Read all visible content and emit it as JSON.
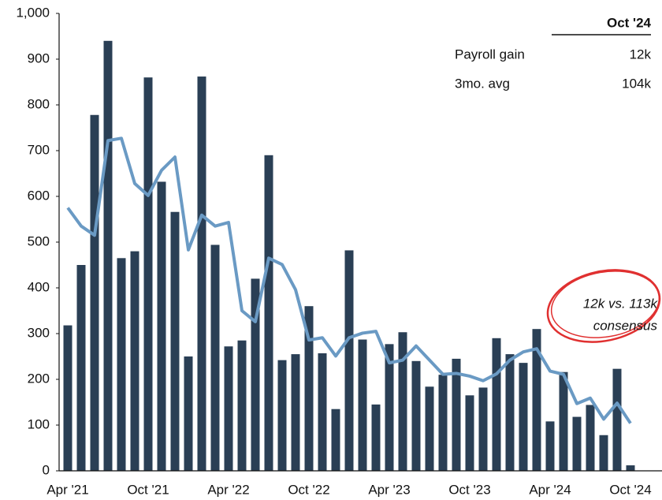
{
  "chart_data": {
    "type": "bar",
    "categories": [
      "Apr '21",
      null,
      null,
      null,
      null,
      null,
      "Oct '21",
      null,
      null,
      null,
      null,
      null,
      "Apr '22",
      null,
      null,
      null,
      null,
      null,
      "Oct '22",
      null,
      null,
      null,
      null,
      null,
      "Apr '23",
      null,
      null,
      null,
      null,
      null,
      "Oct '23",
      null,
      null,
      null,
      null,
      null,
      "Apr '24",
      null,
      null,
      null,
      null,
      null,
      "Oct '24"
    ],
    "series": [
      {
        "name": "Payroll gain",
        "type": "bar",
        "color": "#2a3f55",
        "legend_value": "12k",
        "values": [
          318,
          450,
          778,
          940,
          465,
          480,
          860,
          632,
          566,
          250,
          862,
          494,
          272,
          285,
          420,
          690,
          242,
          255,
          360,
          257,
          135,
          482,
          287,
          145,
          277,
          303,
          240,
          184,
          210,
          245,
          165,
          182,
          290,
          255,
          236,
          310,
          108,
          216,
          118,
          144,
          78,
          223,
          12
        ]
      },
      {
        "name": "3mo. avg",
        "type": "line",
        "color": "#6a9ac4",
        "legend_value": "104k",
        "values": [
          575,
          535,
          515,
          722,
          727,
          628,
          602,
          657,
          686,
          483,
          559,
          535,
          543,
          350,
          326,
          465,
          451,
          396,
          286,
          291,
          251,
          291,
          301,
          305,
          236,
          242,
          273,
          242,
          211,
          213,
          207,
          197,
          212,
          242,
          260,
          267,
          218,
          211,
          147,
          159,
          113,
          148,
          104
        ]
      }
    ],
    "legend_header": "Oct '24",
    "annotation": [
      "12k vs. 113k",
      "consensus"
    ],
    "annotation_color": "#e03030",
    "ylim": [
      0,
      1000
    ],
    "yticks": [
      0,
      100,
      200,
      300,
      400,
      500,
      600,
      700,
      800,
      900,
      {
        "value": 1000,
        "label": "1,000"
      }
    ]
  }
}
